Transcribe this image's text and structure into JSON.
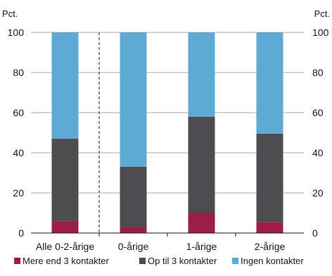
{
  "chart_data": {
    "type": "bar",
    "stacked": true,
    "categories": [
      "Alle 0-2-årige",
      "0-årige",
      "1-årige",
      "2-årige"
    ],
    "series": [
      {
        "name": "Mere end 3 kontakter",
        "values": [
          6,
          3,
          10,
          5.5
        ],
        "color": "#9b1e48"
      },
      {
        "name": "Op til 3 kontakter",
        "values": [
          41,
          30,
          48,
          44
        ],
        "color": "#4d4d4f"
      },
      {
        "name": "Ingen kontakter",
        "values": [
          53,
          67,
          42,
          50.5
        ],
        "color": "#5eaad4"
      }
    ],
    "ylabel_left": "Pct.",
    "ylabel_right": "Pct.",
    "ylim": [
      0,
      100
    ],
    "yticks": [
      0,
      20,
      40,
      60,
      80,
      100
    ],
    "grid": "horizontal",
    "gridColor": "#a7a9ac",
    "separator_after_category": 0,
    "legend": "bottom"
  }
}
